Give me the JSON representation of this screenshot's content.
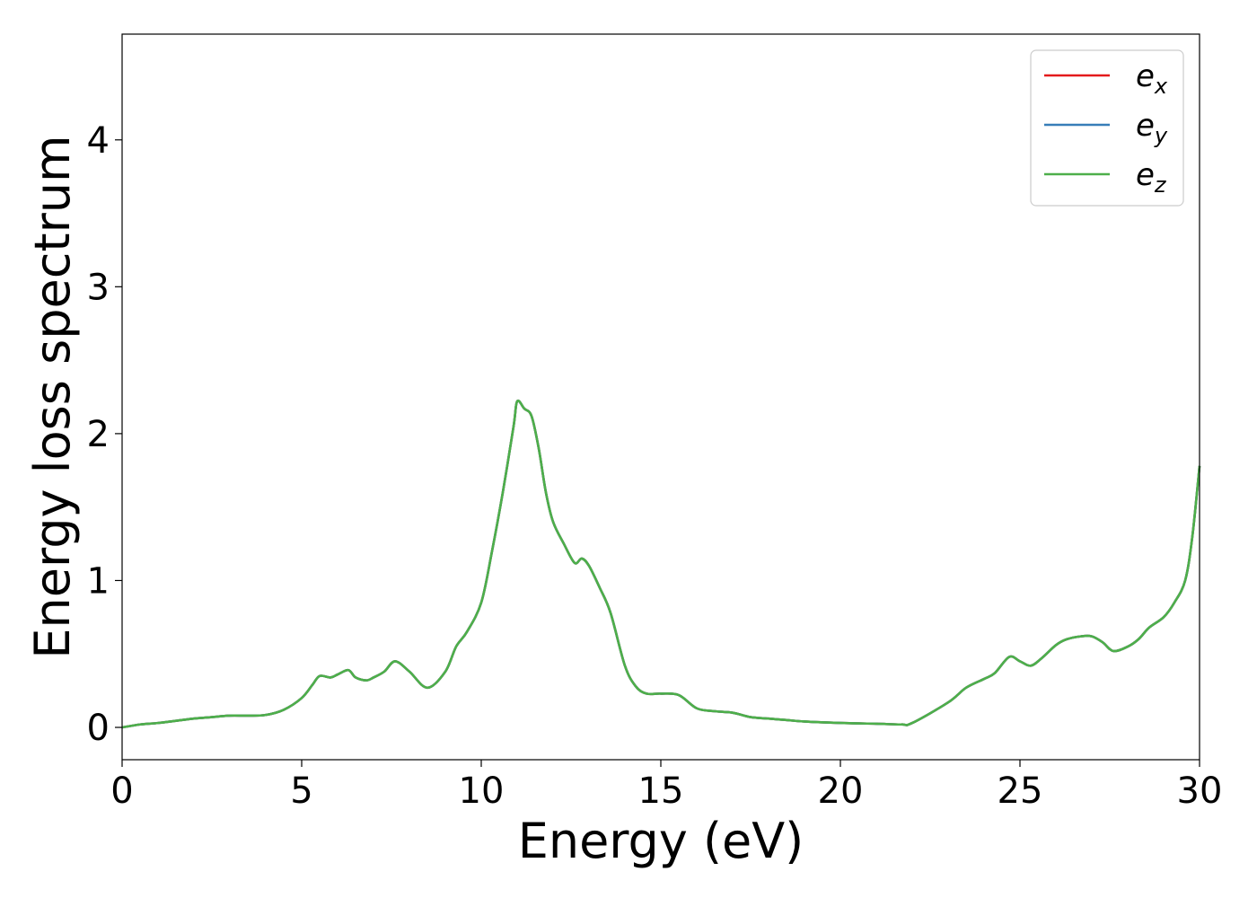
{
  "chart_data": {
    "type": "line",
    "title": "",
    "xlabel": "Energy (eV)",
    "ylabel": "Energy loss spectrum",
    "xlim": [
      0,
      30
    ],
    "ylim": [
      -0.22,
      4.72
    ],
    "x_ticks": [
      "0",
      "5",
      "10",
      "15",
      "20",
      "25",
      "30"
    ],
    "y_ticks": [
      "0",
      "1",
      "2",
      "3",
      "4"
    ],
    "grid": false,
    "legend_position": "top-right",
    "series": [
      {
        "name": "e",
        "subscript": "x",
        "color": "#e41a1c",
        "x": [
          0,
          0.5,
          1,
          1.5,
          2,
          2.5,
          3,
          3.5,
          4,
          4.5,
          5,
          5.3,
          5.5,
          5.8,
          6,
          6.3,
          6.5,
          6.8,
          7,
          7.3,
          7.6,
          8,
          8.5,
          9,
          9.3,
          9.6,
          10,
          10.3,
          10.6,
          10.9,
          11,
          11.2,
          11.4,
          11.6,
          11.8,
          12,
          12.3,
          12.6,
          12.8,
          13,
          13.3,
          13.6,
          14,
          14.3,
          14.6,
          15,
          15.5,
          16,
          16.5,
          17,
          17.5,
          18,
          18.5,
          19,
          20,
          21,
          21.7,
          22,
          23,
          23.5,
          24,
          24.3,
          24.7,
          25,
          25.3,
          25.6,
          26,
          26.3,
          26.7,
          27,
          27.3,
          27.6,
          28,
          28.3,
          28.6,
          29,
          29.3,
          29.6,
          29.8,
          30
        ],
        "values": [
          0,
          0.02,
          0.03,
          0.045,
          0.06,
          0.07,
          0.08,
          0.08,
          0.085,
          0.12,
          0.2,
          0.29,
          0.35,
          0.34,
          0.36,
          0.39,
          0.34,
          0.32,
          0.34,
          0.38,
          0.45,
          0.38,
          0.27,
          0.38,
          0.55,
          0.65,
          0.85,
          1.2,
          1.6,
          2.05,
          2.22,
          2.17,
          2.12,
          1.9,
          1.6,
          1.4,
          1.25,
          1.12,
          1.15,
          1.1,
          0.95,
          0.78,
          0.42,
          0.28,
          0.23,
          0.23,
          0.22,
          0.13,
          0.11,
          0.1,
          0.07,
          0.06,
          0.05,
          0.04,
          0.03,
          0.025,
          0.02,
          0.03,
          0.17,
          0.27,
          0.33,
          0.37,
          0.48,
          0.45,
          0.42,
          0.47,
          0.56,
          0.6,
          0.62,
          0.62,
          0.58,
          0.52,
          0.55,
          0.6,
          0.68,
          0.75,
          0.85,
          1.0,
          1.3,
          1.78
        ]
      },
      {
        "name": "e",
        "subscript": "y",
        "color": "#377eb8",
        "x": [
          0,
          0.5,
          1,
          1.5,
          2,
          2.5,
          3,
          3.5,
          4,
          4.5,
          5,
          5.3,
          5.5,
          5.8,
          6,
          6.3,
          6.5,
          6.8,
          7,
          7.3,
          7.6,
          8,
          8.5,
          9,
          9.3,
          9.6,
          10,
          10.3,
          10.6,
          10.9,
          11,
          11.2,
          11.4,
          11.6,
          11.8,
          12,
          12.3,
          12.6,
          12.8,
          13,
          13.3,
          13.6,
          14,
          14.3,
          14.6,
          15,
          15.5,
          16,
          16.5,
          17,
          17.5,
          18,
          18.5,
          19,
          20,
          21,
          21.7,
          22,
          23,
          23.5,
          24,
          24.3,
          24.7,
          25,
          25.3,
          25.6,
          26,
          26.3,
          26.7,
          27,
          27.3,
          27.6,
          28,
          28.3,
          28.6,
          29,
          29.3,
          29.6,
          29.8,
          30
        ],
        "values": [
          0,
          0.02,
          0.03,
          0.045,
          0.06,
          0.07,
          0.08,
          0.08,
          0.085,
          0.12,
          0.2,
          0.29,
          0.35,
          0.34,
          0.36,
          0.39,
          0.34,
          0.32,
          0.34,
          0.38,
          0.45,
          0.38,
          0.27,
          0.38,
          0.55,
          0.65,
          0.85,
          1.2,
          1.6,
          2.05,
          2.22,
          2.17,
          2.12,
          1.9,
          1.6,
          1.4,
          1.25,
          1.12,
          1.15,
          1.1,
          0.95,
          0.78,
          0.42,
          0.28,
          0.23,
          0.23,
          0.22,
          0.13,
          0.11,
          0.1,
          0.07,
          0.06,
          0.05,
          0.04,
          0.03,
          0.025,
          0.02,
          0.03,
          0.17,
          0.27,
          0.33,
          0.37,
          0.48,
          0.45,
          0.42,
          0.47,
          0.56,
          0.6,
          0.62,
          0.62,
          0.58,
          0.52,
          0.55,
          0.6,
          0.68,
          0.75,
          0.85,
          1.0,
          1.3,
          1.78
        ]
      },
      {
        "name": "e",
        "subscript": "z",
        "color": "#4daf4a",
        "x": [
          0,
          0.5,
          1,
          1.5,
          2,
          2.5,
          3,
          3.5,
          4,
          4.5,
          5,
          5.3,
          5.5,
          5.8,
          6,
          6.3,
          6.5,
          6.8,
          7,
          7.3,
          7.6,
          8,
          8.5,
          9,
          9.3,
          9.6,
          10,
          10.3,
          10.6,
          10.9,
          11,
          11.2,
          11.4,
          11.6,
          11.8,
          12,
          12.3,
          12.6,
          12.8,
          13,
          13.3,
          13.6,
          14,
          14.3,
          14.6,
          15,
          15.5,
          16,
          16.5,
          17,
          17.5,
          18,
          18.5,
          19,
          20,
          21,
          21.7,
          22,
          23,
          23.5,
          24,
          24.3,
          24.7,
          25,
          25.3,
          25.6,
          26,
          26.3,
          26.7,
          27,
          27.3,
          27.6,
          28,
          28.3,
          28.6,
          29,
          29.3,
          29.6,
          29.8,
          30
        ],
        "values": [
          0,
          0.02,
          0.03,
          0.045,
          0.06,
          0.07,
          0.08,
          0.08,
          0.085,
          0.12,
          0.2,
          0.29,
          0.35,
          0.34,
          0.36,
          0.39,
          0.34,
          0.32,
          0.34,
          0.38,
          0.45,
          0.38,
          0.27,
          0.38,
          0.55,
          0.65,
          0.85,
          1.2,
          1.6,
          2.05,
          2.22,
          2.17,
          2.12,
          1.9,
          1.6,
          1.4,
          1.25,
          1.12,
          1.15,
          1.1,
          0.95,
          0.78,
          0.42,
          0.28,
          0.23,
          0.23,
          0.22,
          0.13,
          0.11,
          0.1,
          0.07,
          0.06,
          0.05,
          0.04,
          0.03,
          0.025,
          0.02,
          0.03,
          0.17,
          0.27,
          0.33,
          0.37,
          0.48,
          0.45,
          0.42,
          0.47,
          0.56,
          0.6,
          0.62,
          0.62,
          0.58,
          0.52,
          0.55,
          0.6,
          0.68,
          0.75,
          0.85,
          1.0,
          1.3,
          1.78
        ]
      }
    ]
  }
}
